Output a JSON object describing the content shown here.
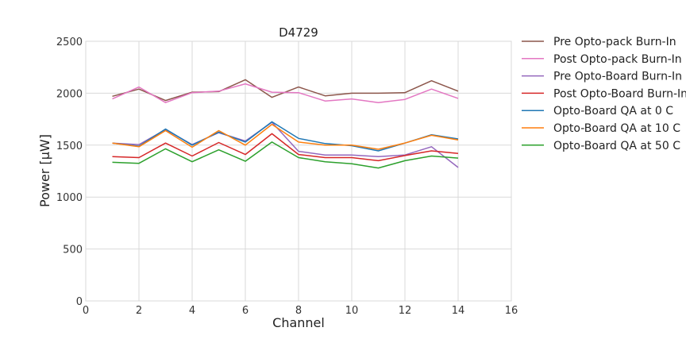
{
  "chart_data": {
    "type": "line",
    "title": "D4729",
    "xlabel": "Channel",
    "ylabel": "Power [μW]",
    "xlim": [
      0,
      16
    ],
    "ylim": [
      0,
      2500
    ],
    "xticks": [
      0,
      2,
      4,
      6,
      8,
      10,
      12,
      14,
      16
    ],
    "yticks": [
      0,
      500,
      1000,
      1500,
      2000,
      2500
    ],
    "grid": true,
    "legend_position": "outside-right",
    "x": [
      1,
      2,
      3,
      4,
      5,
      6,
      7,
      8,
      9,
      10,
      11,
      12,
      13,
      14
    ],
    "series": [
      {
        "name": "Pre Opto-pack Burn-In",
        "color": "#8c564b",
        "values": [
          1970,
          2040,
          1930,
          2010,
          2015,
          2130,
          1960,
          2060,
          1975,
          2000,
          2000,
          2005,
          2120,
          2020
        ]
      },
      {
        "name": "Post Opto-pack Burn-In",
        "color": "#e377c2",
        "values": [
          1945,
          2060,
          1910,
          2005,
          2020,
          2090,
          2010,
          2005,
          1925,
          1945,
          1910,
          1940,
          2040,
          1950
        ]
      },
      {
        "name": "Pre Opto-Board Burn-In",
        "color": "#9467bd",
        "values": [
          1520,
          1505,
          1650,
          1505,
          1620,
          1540,
          1720,
          1440,
          1405,
          1405,
          1390,
          1405,
          1485,
          1285
        ]
      },
      {
        "name": "Post Opto-Board Burn-In",
        "color": "#d62728",
        "values": [
          1390,
          1380,
          1520,
          1395,
          1525,
          1410,
          1610,
          1410,
          1380,
          1380,
          1350,
          1400,
          1445,
          1420
        ]
      },
      {
        "name": "Opto-Board QA at 0 C",
        "color": "#1f77b4",
        "values": [
          1520,
          1490,
          1655,
          1500,
          1625,
          1530,
          1725,
          1565,
          1515,
          1495,
          1445,
          1520,
          1600,
          1560
        ]
      },
      {
        "name": "Opto-Board QA at 10 C",
        "color": "#ff7f0e",
        "values": [
          1520,
          1485,
          1640,
          1480,
          1640,
          1500,
          1700,
          1530,
          1500,
          1500,
          1460,
          1520,
          1595,
          1550
        ]
      },
      {
        "name": "Opto-Board QA at 50 C",
        "color": "#2ca02c",
        "values": [
          1335,
          1325,
          1465,
          1340,
          1455,
          1345,
          1530,
          1380,
          1340,
          1320,
          1280,
          1350,
          1395,
          1375
        ]
      }
    ]
  }
}
